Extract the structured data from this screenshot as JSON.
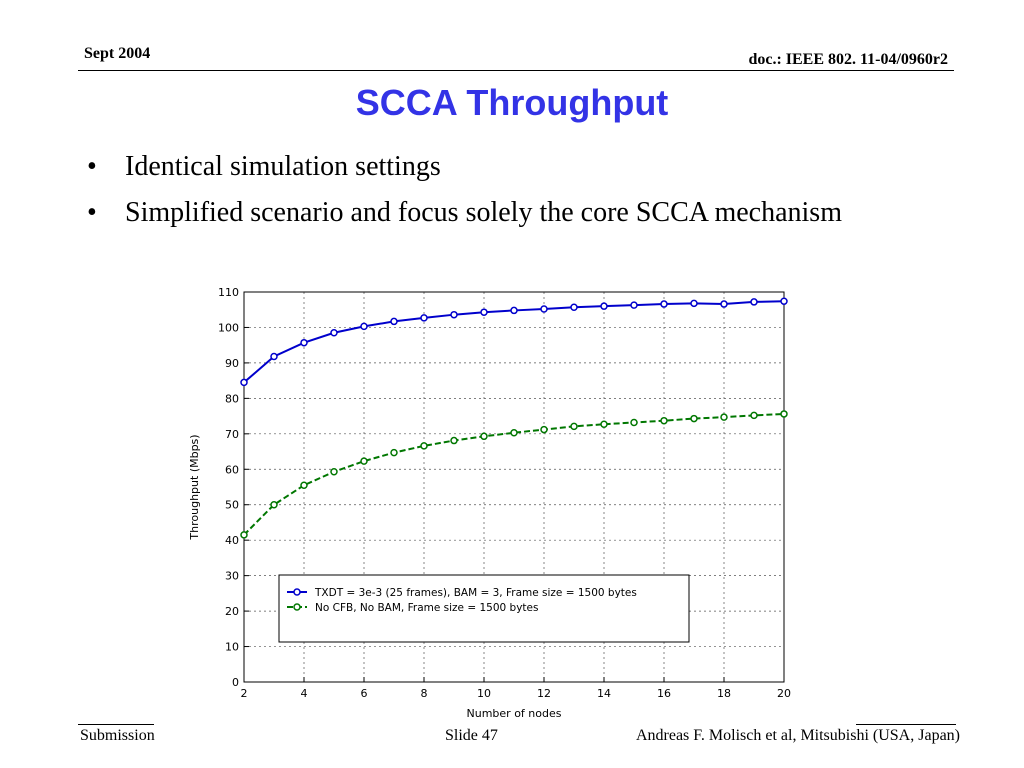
{
  "header": {
    "left": "Sept 2004",
    "right": "doc.: IEEE 802. 11-04/0960r2"
  },
  "title": "SCCA Throughput",
  "bullets": [
    {
      "marker": "•",
      "text": "Identical simulation settings"
    },
    {
      "marker": "•",
      "text": "Simplified scenario and focus solely the core SCCA mechanism"
    }
  ],
  "chart_data": {
    "type": "line",
    "title": "",
    "xlabel": "Number of nodes",
    "ylabel": "Throughput (Mbps)",
    "xlim": [
      2,
      20
    ],
    "ylim": [
      0,
      110
    ],
    "xticks": [
      "2",
      "4",
      "6",
      "8",
      "10",
      "12",
      "14",
      "16",
      "18",
      "20"
    ],
    "yticks": [
      "0",
      "10",
      "20",
      "30",
      "40",
      "50",
      "60",
      "70",
      "80",
      "90",
      "100",
      "110"
    ],
    "grid": true,
    "legend_position": "lower-center",
    "x": [
      2,
      3,
      4,
      5,
      6,
      7,
      8,
      9,
      10,
      11,
      12,
      13,
      14,
      15,
      16,
      17,
      18,
      19,
      20
    ],
    "series": [
      {
        "name": "TXDT = 3e-3 (25 frames), BAM = 3, Frame size = 1500 bytes",
        "color": "#0000cc",
        "style": "solid",
        "values": [
          84.5,
          91.8,
          95.7,
          98.5,
          100.3,
          101.7,
          102.7,
          103.6,
          104.3,
          104.8,
          105.2,
          105.7,
          106.0,
          106.3,
          106.6,
          106.8,
          106.6,
          107.2,
          107.4
        ]
      },
      {
        "name": "No CFB, No BAM, Frame size = 1500 bytes",
        "color": "#007700",
        "style": "dashed",
        "values": [
          41.5,
          50.0,
          55.5,
          59.3,
          62.3,
          64.7,
          66.6,
          68.1,
          69.3,
          70.3,
          71.2,
          72.1,
          72.7,
          73.2,
          73.7,
          74.3,
          74.7,
          75.2,
          75.6
        ]
      }
    ]
  },
  "footer": {
    "left": "Submission",
    "mid": "Slide 47",
    "right": "Andreas F. Molisch et al, Mitsubishi (USA, Japan)"
  }
}
